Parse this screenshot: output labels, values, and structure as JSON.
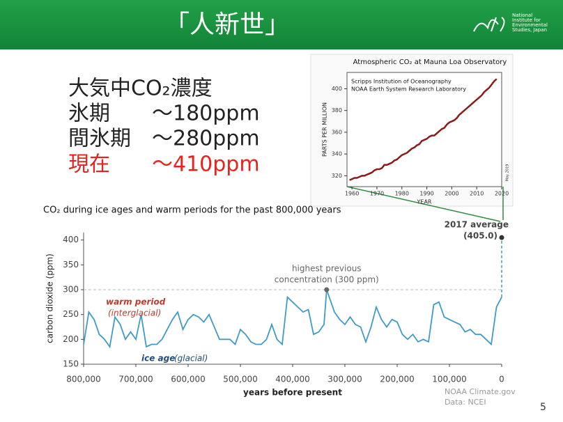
{
  "header": {
    "title": "「人新世」",
    "logo_lines": [
      "National",
      "Institute for",
      "Environmental",
      "Studies, Japan"
    ]
  },
  "concentration": {
    "heading": "大気中CO₂濃度",
    "rows": [
      [
        "氷期",
        "～180ppm"
      ],
      [
        "間氷期",
        "～280ppm"
      ],
      [
        "現在",
        "～410ppm"
      ]
    ]
  },
  "caption": "CO₂ during ice ages and warm periods for the past 800,000 years",
  "credits": [
    "NOAA Climate.gov",
    "Data: NCEI"
  ],
  "page_number": 5,
  "chart_data": [
    {
      "type": "line",
      "title": "Atmospheric CO₂ at Mauna Loa Observatory",
      "subtitle_lines": [
        "Scripps Institution of Oceanography",
        "NOAA Earth System Research Laboratory"
      ],
      "ylabel": "PARTS PER MILLION",
      "xlabel": "YEAR",
      "note": "May 2019",
      "color": "#8b1a1a",
      "x": [
        1959,
        1960,
        1961,
        1962,
        1963,
        1964,
        1965,
        1966,
        1967,
        1968,
        1969,
        1970,
        1971,
        1972,
        1973,
        1974,
        1975,
        1976,
        1977,
        1978,
        1979,
        1980,
        1981,
        1982,
        1983,
        1984,
        1985,
        1986,
        1987,
        1988,
        1989,
        1990,
        1991,
        1992,
        1993,
        1994,
        1995,
        1996,
        1997,
        1998,
        1999,
        2000,
        2001,
        2002,
        2003,
        2004,
        2005,
        2006,
        2007,
        2008,
        2009,
        2010,
        2011,
        2012,
        2013,
        2014,
        2015,
        2016,
        2017,
        2018
      ],
      "values": [
        316,
        317,
        318,
        318,
        319,
        320,
        320,
        321,
        322,
        323,
        325,
        326,
        326,
        327,
        330,
        330,
        331,
        332,
        334,
        335,
        337,
        339,
        340,
        341,
        343,
        345,
        346,
        348,
        349,
        352,
        353,
        354,
        356,
        357,
        357,
        359,
        361,
        363,
        364,
        367,
        369,
        370,
        371,
        373,
        376,
        378,
        380,
        382,
        384,
        386,
        388,
        390,
        392,
        394,
        397,
        399,
        401,
        404,
        407,
        409
      ],
      "xlim": [
        1958,
        2020
      ],
      "xticks": [
        1960,
        1970,
        1980,
        1990,
        2000,
        2010,
        2020
      ],
      "ylim": [
        310,
        415
      ],
      "yticks": [
        320,
        340,
        360,
        380,
        400
      ]
    },
    {
      "type": "line",
      "ylabel": "carbon dioxide (ppm)",
      "xlabel": "years before present",
      "color": "#3d9bc9",
      "x": [
        800000,
        790000,
        780000,
        770000,
        760000,
        750000,
        740000,
        730000,
        720000,
        710000,
        700000,
        690000,
        680000,
        670000,
        660000,
        650000,
        640000,
        630000,
        620000,
        610000,
        600000,
        590000,
        580000,
        570000,
        560000,
        550000,
        540000,
        530000,
        520000,
        510000,
        500000,
        490000,
        480000,
        470000,
        460000,
        450000,
        440000,
        430000,
        420000,
        410000,
        400000,
        390000,
        380000,
        370000,
        360000,
        350000,
        340000,
        335000,
        320000,
        310000,
        300000,
        290000,
        280000,
        270000,
        260000,
        250000,
        240000,
        230000,
        220000,
        210000,
        200000,
        190000,
        180000,
        170000,
        160000,
        150000,
        140000,
        130000,
        120000,
        110000,
        100000,
        90000,
        80000,
        70000,
        60000,
        50000,
        40000,
        30000,
        20000,
        10000,
        0
      ],
      "values": [
        190,
        255,
        240,
        210,
        200,
        185,
        245,
        230,
        200,
        215,
        200,
        250,
        185,
        190,
        190,
        200,
        220,
        240,
        255,
        220,
        240,
        250,
        245,
        235,
        250,
        225,
        200,
        200,
        200,
        190,
        220,
        210,
        195,
        190,
        190,
        200,
        230,
        200,
        190,
        285,
        275,
        265,
        255,
        260,
        210,
        215,
        230,
        300,
        255,
        240,
        230,
        245,
        230,
        225,
        195,
        225,
        265,
        240,
        225,
        240,
        235,
        210,
        200,
        210,
        195,
        200,
        195,
        270,
        275,
        245,
        240,
        235,
        230,
        215,
        220,
        210,
        210,
        200,
        190,
        265,
        285
      ],
      "xlim": [
        800000,
        0
      ],
      "xticks": [
        {
          "value": 800000,
          "label": "800,000"
        },
        {
          "value": 700000,
          "label": "700,000"
        },
        {
          "value": 600000,
          "label": "600,000"
        },
        {
          "value": 500000,
          "label": "500,000"
        },
        {
          "value": 400000,
          "label": "400,000"
        },
        {
          "value": 300000,
          "label": "300,000"
        },
        {
          "value": 200000,
          "label": "200,000"
        },
        {
          "value": 100000,
          "label": "100,000"
        },
        0
      ],
      "ylim": [
        150,
        415
      ],
      "yticks": [
        150,
        200,
        250,
        300,
        350,
        400
      ],
      "reference": {
        "value": 300,
        "lines": [
          "highest previous",
          "concentration (300 ppm)"
        ]
      },
      "point": {
        "x": 0,
        "value": 405,
        "label": "2017 average",
        "value_label": "(405.0)"
      },
      "annotations": [
        "warm period",
        "(interglacial)",
        "ice age",
        "(glacial)"
      ]
    }
  ]
}
